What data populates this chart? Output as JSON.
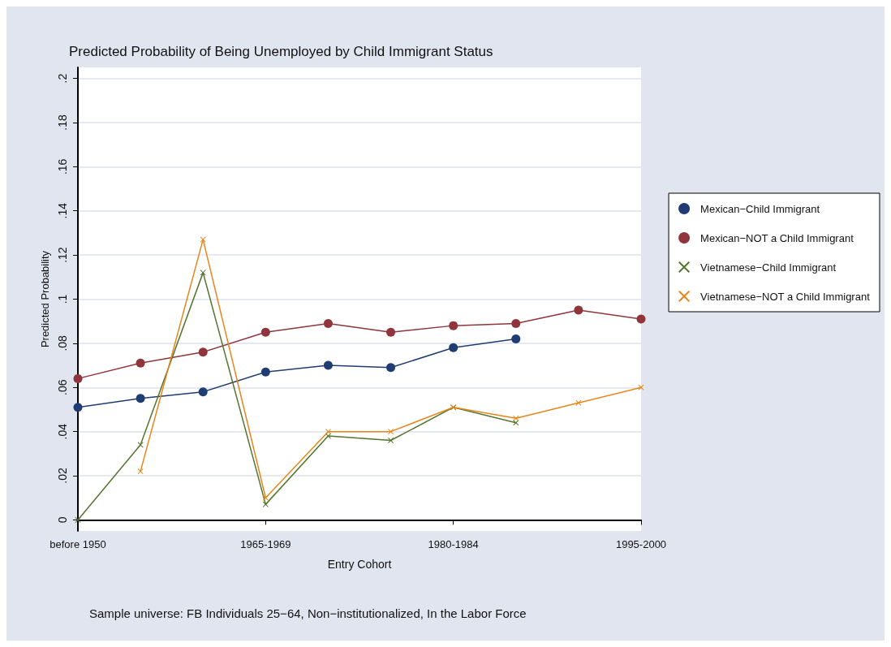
{
  "chart_data": {
    "type": "line",
    "title": "Predicted Probability of Being Unemployed by Child Immigrant Status",
    "xlabel": "Entry Cohort",
    "ylabel": "Predicted Probability",
    "categories": [
      "before 1950",
      null,
      null,
      "1965-1969",
      null,
      null,
      "1980-1984",
      null,
      null,
      "1995-2000"
    ],
    "series": [
      {
        "name": "Mexican−Child Immigrant",
        "color": "#1f3d73",
        "marker": "circle",
        "values": [
          0.051,
          0.055,
          0.058,
          0.067,
          0.07,
          0.069,
          0.078,
          0.082,
          null,
          null
        ]
      },
      {
        "name": "Mexican−NOT a Child Immigrant",
        "color": "#90353b",
        "marker": "circle",
        "values": [
          0.064,
          0.071,
          0.076,
          0.085,
          0.089,
          0.085,
          0.088,
          0.089,
          0.095,
          0.091
        ]
      },
      {
        "name": "Vietnamese−Child Immigrant",
        "color": "#55752f",
        "marker": "cross",
        "values": [
          0.0,
          0.034,
          0.112,
          0.007,
          0.038,
          0.036,
          0.051,
          0.044,
          null,
          null
        ]
      },
      {
        "name": "Vietnamese−NOT a Child Immigrant",
        "color": "#e8851a",
        "marker": "cross",
        "values": [
          null,
          0.022,
          0.127,
          0.01,
          0.04,
          0.04,
          0.051,
          0.046,
          0.053,
          0.06
        ]
      }
    ],
    "ylim": [
      -0.005,
      0.205
    ],
    "yticks": [
      {
        "value": 0,
        "label": "0"
      },
      {
        "value": 0.02,
        "label": ".02"
      },
      {
        "value": 0.04,
        "label": ".04"
      },
      {
        "value": 0.06,
        "label": ".06"
      },
      {
        "value": 0.08,
        "label": ".08"
      },
      {
        "value": 0.1,
        "label": ".1"
      },
      {
        "value": 0.12,
        "label": ".12"
      },
      {
        "value": 0.14,
        "label": ".14"
      },
      {
        "value": 0.16,
        "label": ".16"
      },
      {
        "value": 0.18,
        "label": ".18"
      },
      {
        "value": 0.2,
        "label": ".2"
      }
    ],
    "grid": "y",
    "legend": "right",
    "line_style": "solid",
    "annotations": [
      "Sample universe: FB Individuals 25−64, Non−institutionalized, In the Labor Force"
    ]
  }
}
